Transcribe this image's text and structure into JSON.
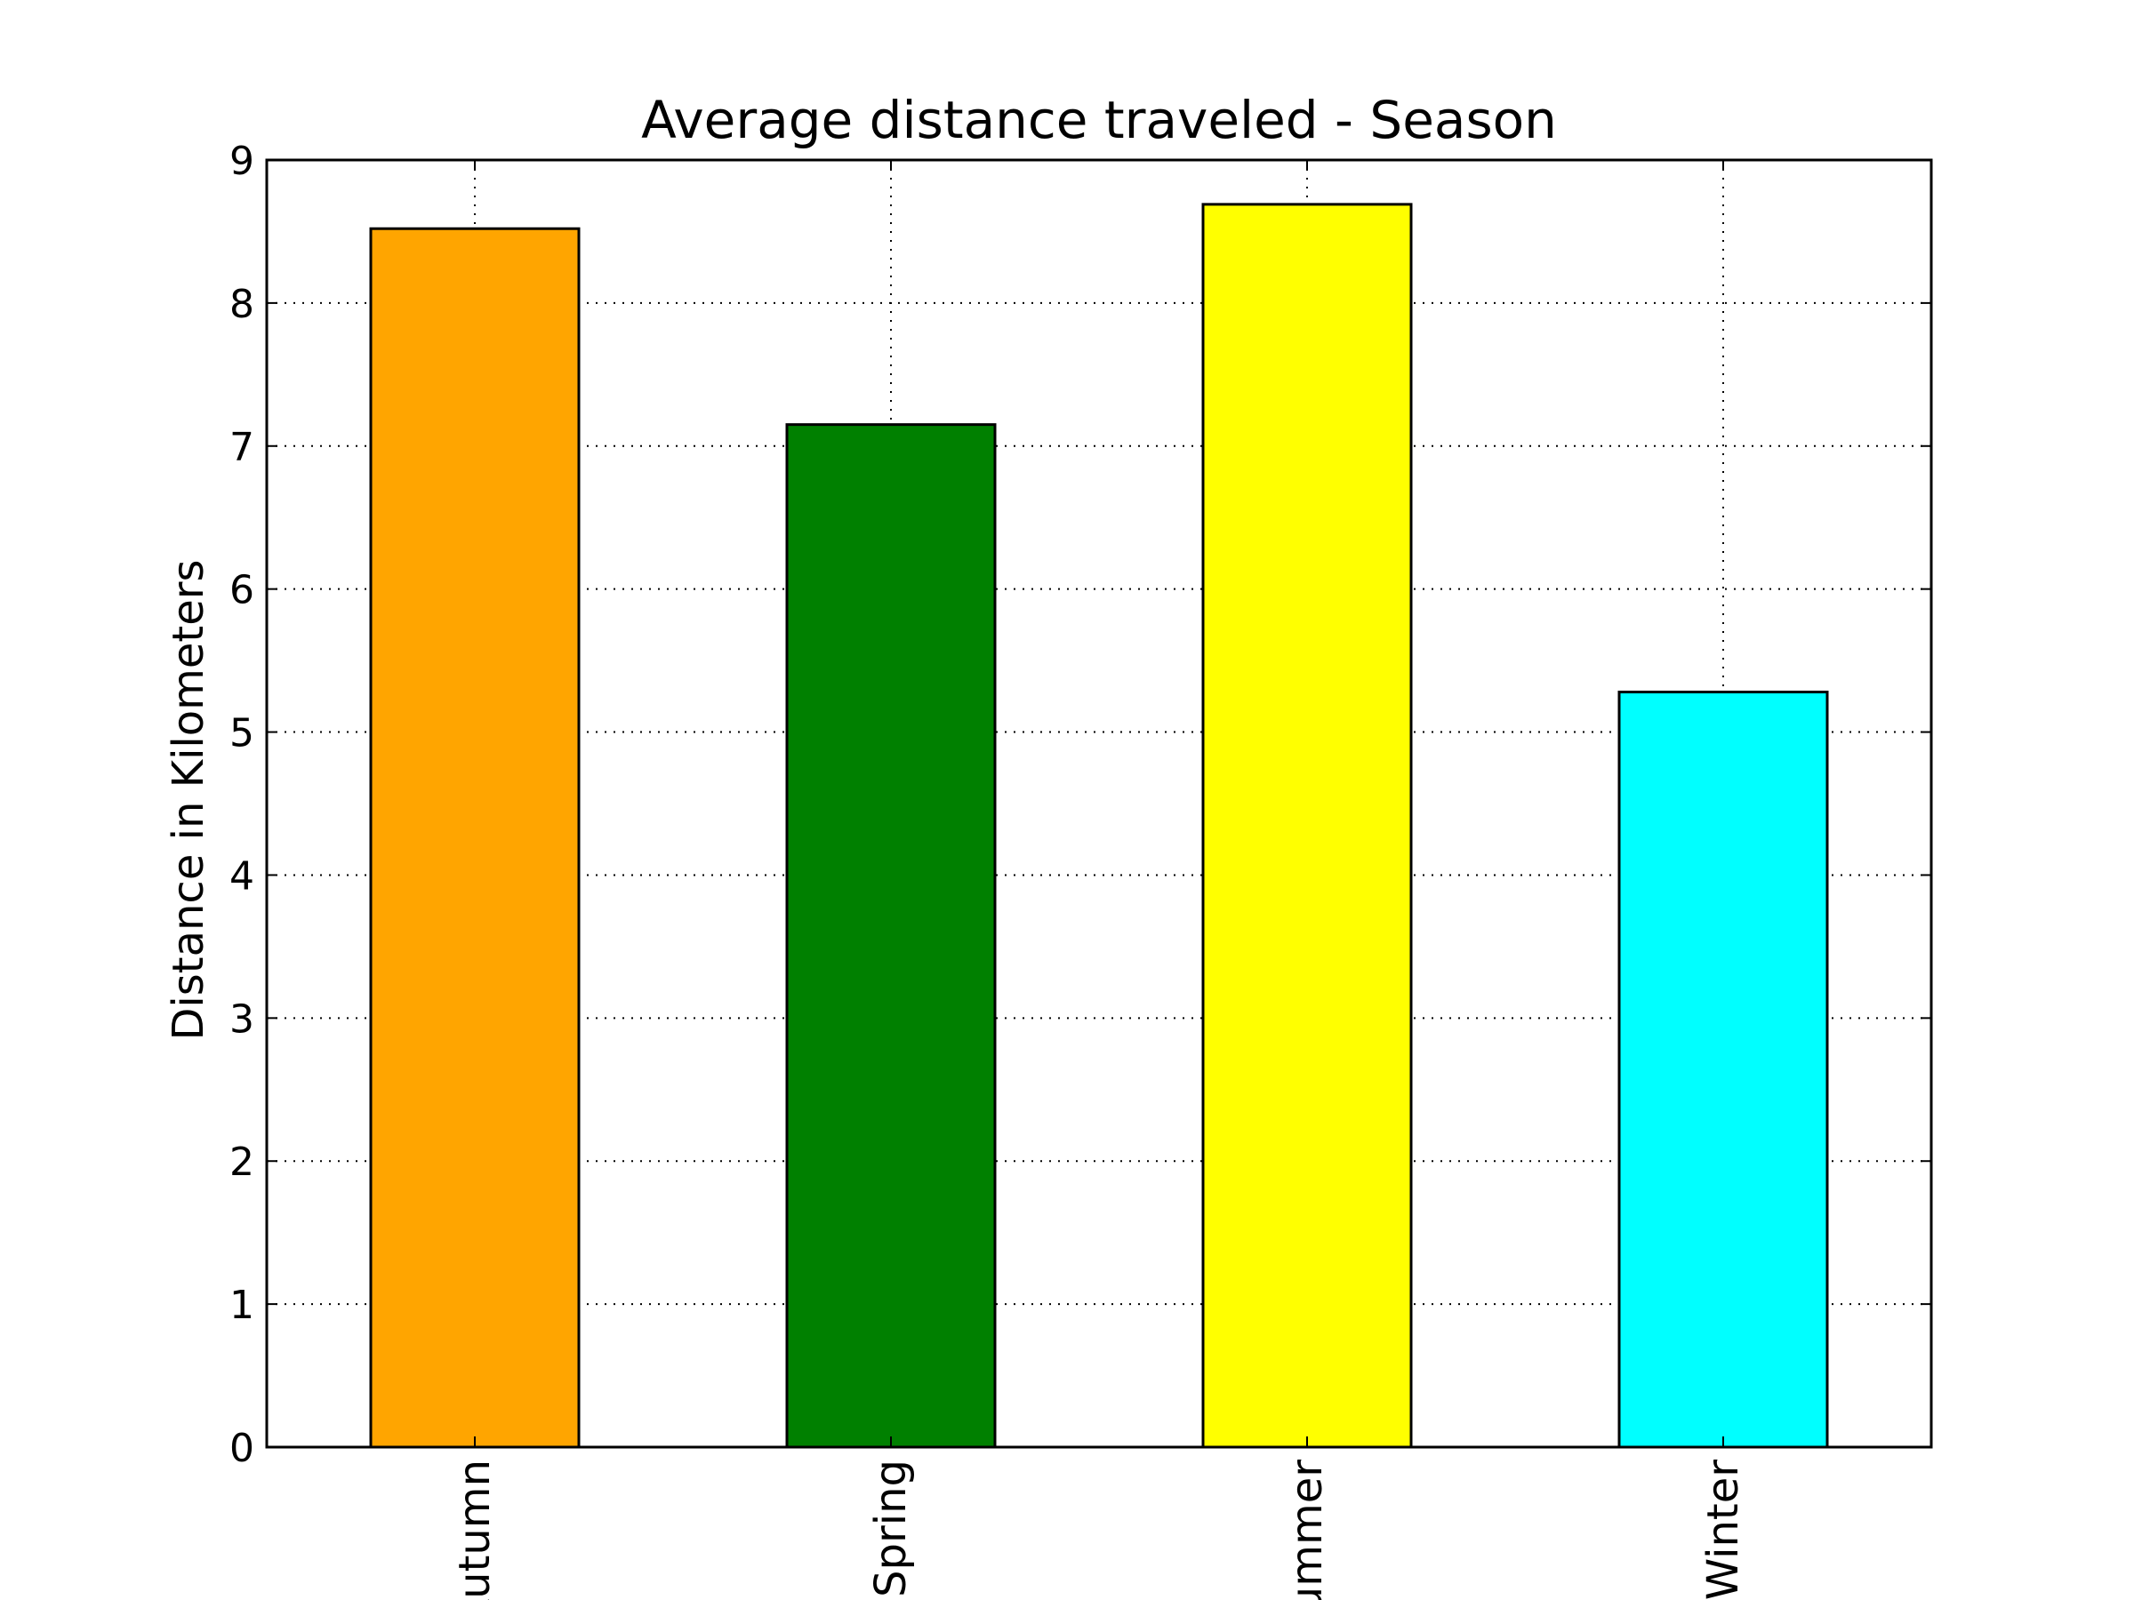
{
  "chart_data": {
    "type": "bar",
    "title": "Average distance traveled - Season",
    "xlabel": "",
    "ylabel": "Distance in Kilometers",
    "categories": [
      "Autumn",
      "Spring",
      "Summer",
      "Winter"
    ],
    "values": [
      8.52,
      7.15,
      8.69,
      5.28
    ],
    "colors": [
      "#ffa500",
      "#008000",
      "#ffff00",
      "#00ffff"
    ],
    "ylim": [
      0,
      9
    ],
    "yticks": [
      "0",
      "1",
      "2",
      "3",
      "4",
      "5",
      "6",
      "7",
      "8",
      "9"
    ],
    "grid": true,
    "legend": "none"
  }
}
